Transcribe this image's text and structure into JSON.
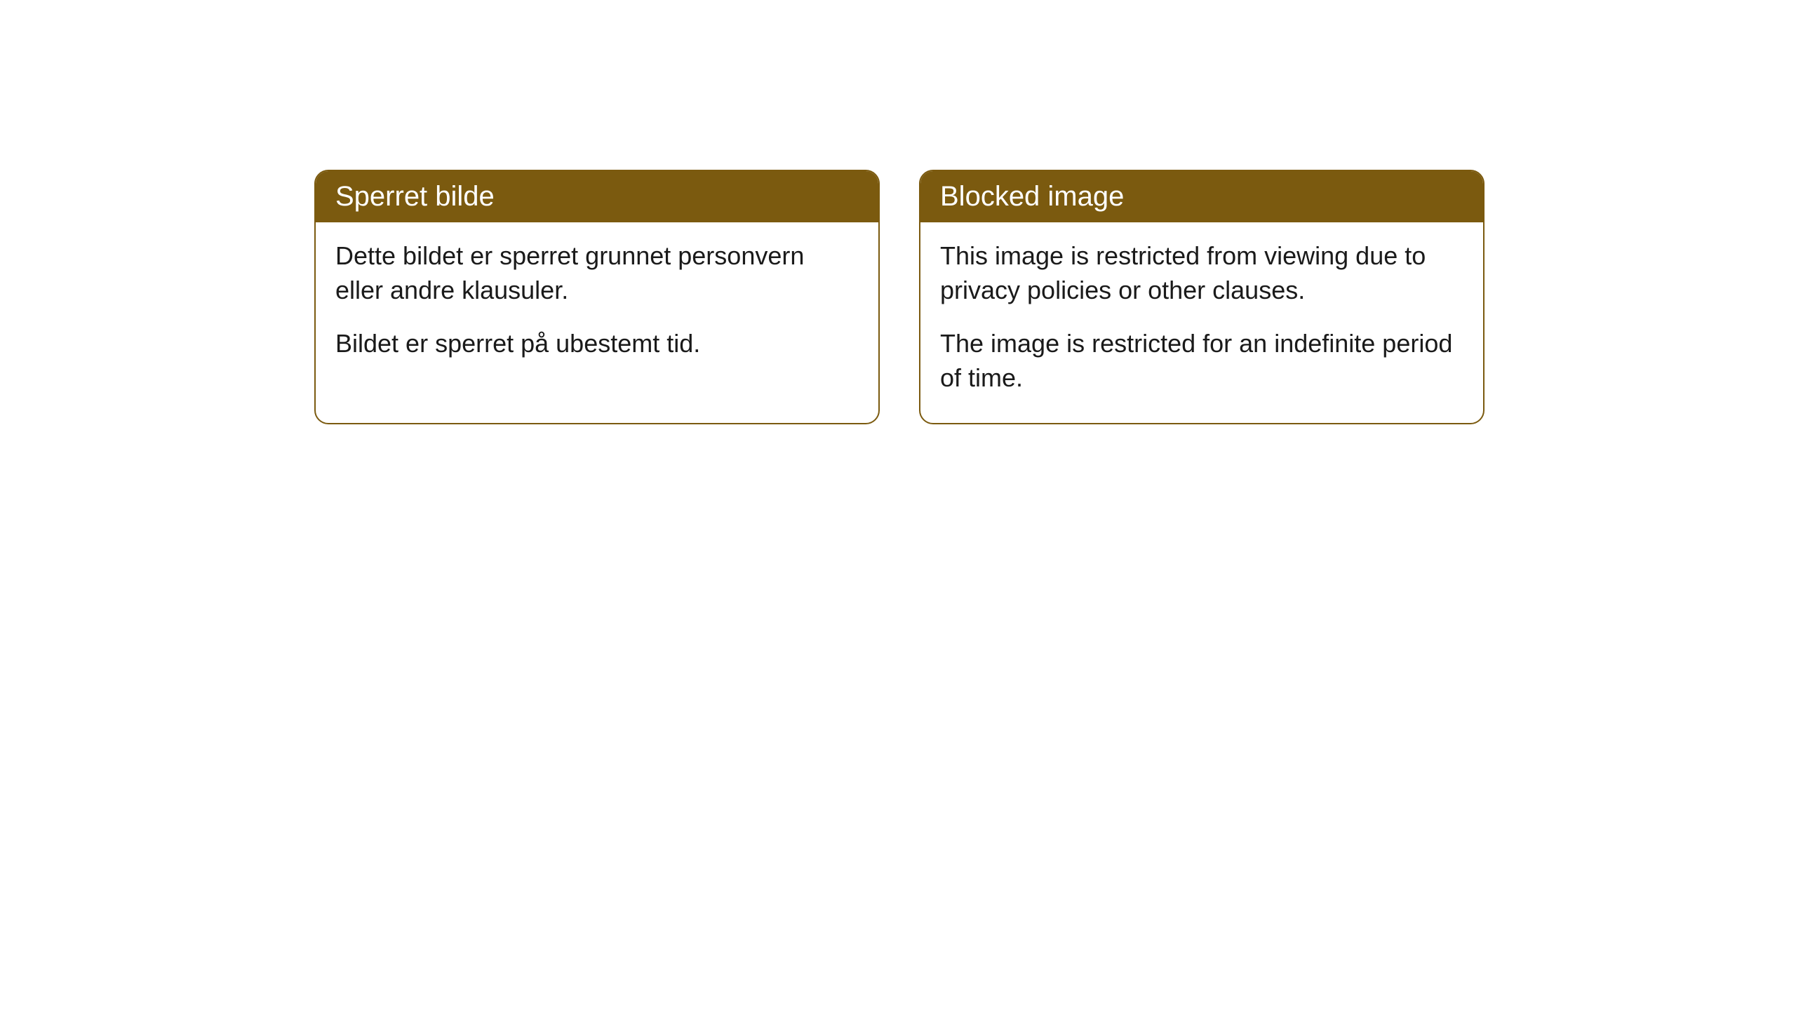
{
  "cards": [
    {
      "title": "Sperret bilde",
      "paragraph1": "Dette bildet er sperret grunnet personvern eller andre klausuler.",
      "paragraph2": "Bildet er sperret på ubestemt tid."
    },
    {
      "title": "Blocked image",
      "paragraph1": "This image is restricted from viewing due to privacy policies or other clauses.",
      "paragraph2": "The image is restricted for an indefinite period of time."
    }
  ],
  "styling": {
    "header_background": "#7b5a0f",
    "header_text_color": "#ffffff",
    "body_text_color": "#1a1a1a",
    "card_border_color": "#7b5a0f",
    "card_background": "#ffffff",
    "page_background": "#ffffff",
    "border_radius": 20,
    "header_fontsize": 40,
    "body_fontsize": 36
  }
}
